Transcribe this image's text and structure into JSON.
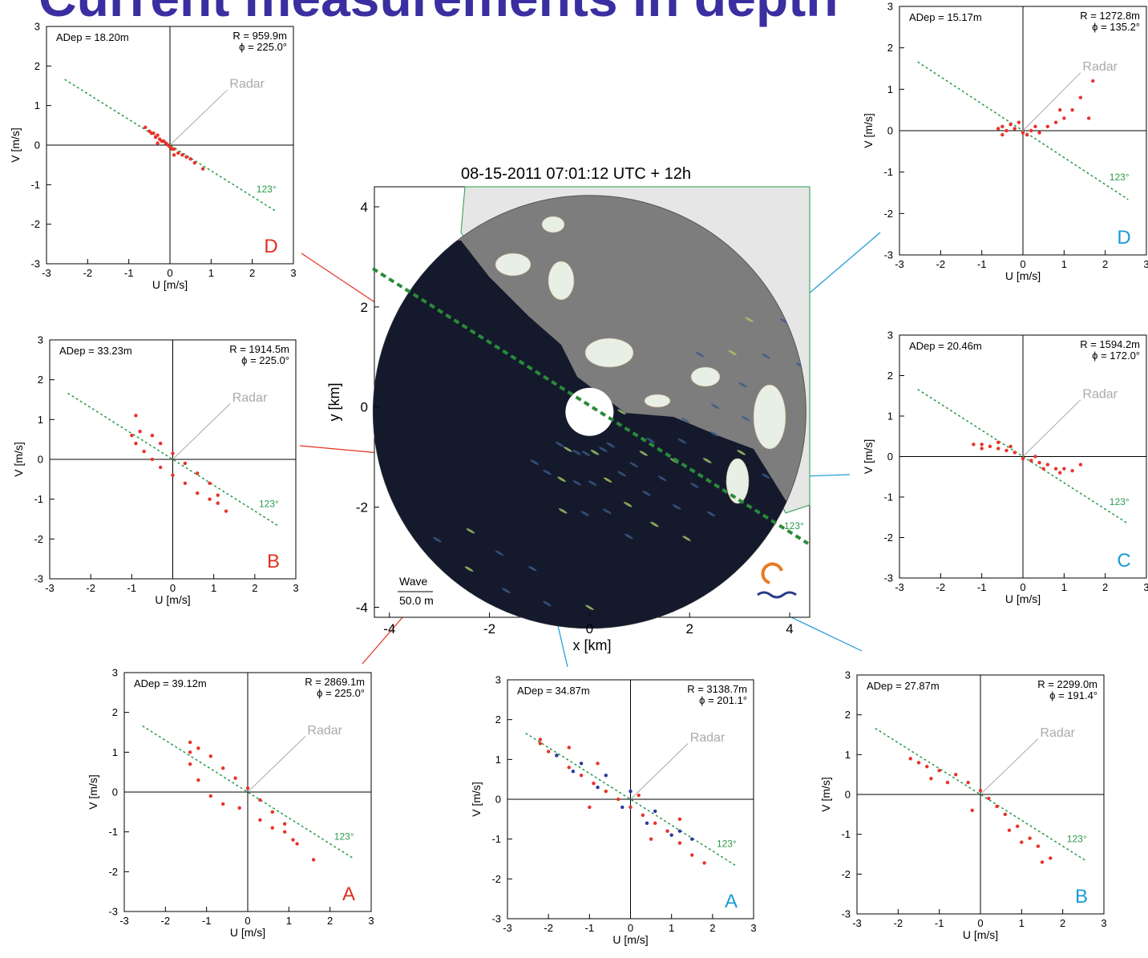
{
  "page_title": "Current measurements in depth",
  "chart_data": [
    {
      "type": "radar_map",
      "title": "08-15-2011 07:01:12 UTC +  12h",
      "xlabel": "x [km]",
      "ylabel": "y [km]",
      "xlim": [
        -4.3,
        4.4
      ],
      "ylim": [
        -4.2,
        4.4
      ],
      "xticks": [
        -4,
        -2,
        0,
        2,
        4
      ],
      "yticks": [
        -4,
        -2,
        0,
        2,
        4
      ],
      "annotations": {
        "wave": "Wave",
        "scale": "50.0 m",
        "angle_label": "123°"
      }
    },
    {
      "type": "scatter",
      "xlabel": "U [m/s]",
      "ylabel": "V [m/s]",
      "xlim": [
        -3,
        3
      ],
      "ylim": [
        -3,
        3
      ],
      "xticks": [
        -3,
        -2,
        -1,
        0,
        1,
        2,
        3
      ],
      "yticks": [
        -3,
        -2,
        -1,
        0,
        1,
        2,
        3
      ],
      "annotations": {
        "adep": "ADep =  18.20m",
        "range": "R =  959.9m",
        "phi": "ϕ =  225.0°",
        "radar_label": "Radar",
        "angle_label": "123°",
        "panel_label": "D"
      },
      "panel_label_color": "#e0301e",
      "series": [
        {
          "color": "#e8322a",
          "x": [
            -0.6,
            -0.5,
            -0.45,
            -0.4,
            -0.35,
            -0.3,
            -0.25,
            -0.2,
            -0.15,
            -0.1,
            -0.05,
            0,
            0.05,
            0.1,
            0.2,
            0.3,
            0.4,
            0.5,
            0.6,
            0.8,
            -0.3,
            0.1
          ],
          "y": [
            0.45,
            0.35,
            0.3,
            0.3,
            0.2,
            0.25,
            0.15,
            0.1,
            0.1,
            0.05,
            0,
            -0.05,
            -0.1,
            -0.1,
            -0.2,
            -0.25,
            -0.3,
            -0.35,
            -0.45,
            -0.6,
            0.05,
            -0.25
          ]
        }
      ]
    },
    {
      "type": "scatter",
      "xlabel": "U [m/s]",
      "ylabel": "V [m/s]",
      "xlim": [
        -3,
        3
      ],
      "ylim": [
        -3,
        3
      ],
      "xticks": [
        -3,
        -2,
        -1,
        0,
        1,
        2,
        3
      ],
      "yticks": [
        -3,
        -2,
        -1,
        0,
        1,
        2,
        3
      ],
      "annotations": {
        "adep": "ADep =  33.23m",
        "range": "R = 1914.5m",
        "phi": "ϕ =  225.0°",
        "radar_label": "Radar",
        "angle_label": "123°",
        "panel_label": "B"
      },
      "panel_label_color": "#e0301e",
      "series": [
        {
          "color": "#e8322a",
          "x": [
            -1,
            -0.8,
            -0.5,
            -0.3,
            0,
            0.3,
            0.6,
            0.9,
            1.1,
            1.3,
            -0.9,
            -0.7,
            -0.5,
            -0.3,
            0,
            0.3,
            0.6,
            0.9,
            1.1,
            -0.9
          ],
          "y": [
            0.6,
            0.7,
            0.6,
            0.4,
            0.15,
            -0.1,
            -0.35,
            -0.6,
            -0.9,
            -1.3,
            0.4,
            0.2,
            0,
            -0.2,
            -0.4,
            -0.6,
            -0.85,
            -1.0,
            -1.1,
            1.1
          ]
        }
      ]
    },
    {
      "type": "scatter",
      "xlabel": "U [m/s]",
      "ylabel": "V [m/s]",
      "xlim": [
        -3,
        3
      ],
      "ylim": [
        -3,
        3
      ],
      "xticks": [
        -3,
        -2,
        -1,
        0,
        1,
        2,
        3
      ],
      "yticks": [
        -3,
        -2,
        -1,
        0,
        1,
        2,
        3
      ],
      "annotations": {
        "adep": "ADep =  39.12m",
        "range": "R = 2869.1m",
        "phi": "ϕ =  225.0°",
        "radar_label": "Radar",
        "angle_label": "123°",
        "panel_label": "A"
      },
      "panel_label_color": "#e0301e",
      "series": [
        {
          "color": "#e8322a",
          "x": [
            -1.4,
            -1.2,
            -0.9,
            -0.6,
            -0.3,
            0,
            0.3,
            0.6,
            0.9,
            1.2,
            1.6,
            -1.4,
            -1.2,
            -0.9,
            -0.6,
            -0.2,
            0.3,
            0.6,
            0.9,
            1.1,
            -1.4
          ],
          "y": [
            1.0,
            1.1,
            0.9,
            0.6,
            0.35,
            0.1,
            -0.2,
            -0.5,
            -0.8,
            -1.3,
            -1.7,
            0.7,
            0.3,
            -0.1,
            -0.3,
            -0.4,
            -0.7,
            -0.9,
            -1.0,
            -1.2,
            1.25
          ]
        }
      ]
    },
    {
      "type": "scatter",
      "xlabel": "U [m/s]",
      "ylabel": "V [m/s]",
      "xlim": [
        -3,
        3
      ],
      "ylim": [
        -3,
        3
      ],
      "xticks": [
        -3,
        -2,
        -1,
        0,
        1,
        2,
        3
      ],
      "yticks": [
        -3,
        -2,
        -1,
        0,
        1,
        2,
        3
      ],
      "annotations": {
        "adep": "ADep =  34.87m",
        "range": "R = 3138.7m",
        "phi": "ϕ =  201.1°",
        "radar_label": "Radar",
        "angle_label": "123°",
        "panel_label": "A"
      },
      "panel_label_color": "#1a9ad6",
      "series": [
        {
          "color": "#e8322a",
          "x": [
            -2.2,
            -2,
            -1.8,
            -1.5,
            -1.2,
            -0.9,
            -0.6,
            -0.3,
            0,
            0.3,
            0.6,
            0.9,
            1.2,
            1.5,
            1.8,
            -1.5,
            -0.8,
            0.2,
            -1.0,
            0.5,
            1.2,
            -2.2
          ],
          "y": [
            1.4,
            1.2,
            1.1,
            0.8,
            0.6,
            0.4,
            0.2,
            0,
            -0.2,
            -0.4,
            -0.6,
            -0.8,
            -1.1,
            -1.4,
            -1.6,
            1.3,
            0.9,
            0.1,
            -0.2,
            -1.0,
            -0.5,
            1.5
          ]
        },
        {
          "color": "#2a3aa0",
          "x": [
            -1.8,
            -1.2,
            -0.6,
            0,
            0.6,
            1.2,
            1.5,
            1.0,
            0.4,
            -0.2,
            -0.8,
            -1.4
          ],
          "y": [
            1.1,
            0.9,
            0.6,
            0.2,
            -0.3,
            -0.8,
            -1.0,
            -0.9,
            -0.6,
            -0.2,
            0.3,
            0.7
          ]
        }
      ]
    },
    {
      "type": "scatter",
      "xlabel": "U [m/s]",
      "ylabel": "V [m/s]",
      "xlim": [
        -3,
        3
      ],
      "ylim": [
        -3,
        3
      ],
      "xticks": [
        -3,
        -2,
        -1,
        0,
        1,
        2,
        3
      ],
      "yticks": [
        -3,
        -2,
        -1,
        0,
        1,
        2,
        3
      ],
      "annotations": {
        "adep": "ADep =  27.87m",
        "range": "R = 2299.0m",
        "phi": "ϕ =  191.4°",
        "radar_label": "Radar",
        "angle_label": "123°",
        "panel_label": "B"
      },
      "panel_label_color": "#1a9ad6",
      "series": [
        {
          "color": "#e8322a",
          "x": [
            -1.7,
            -1.5,
            -1.3,
            -1,
            -0.6,
            -0.3,
            0,
            0.2,
            0.4,
            0.6,
            0.9,
            1.2,
            1.4,
            1.7,
            -1.2,
            -0.8,
            0.7,
            1.0,
            1.5,
            -0.2
          ],
          "y": [
            0.9,
            0.8,
            0.7,
            0.6,
            0.5,
            0.3,
            0.1,
            -0.1,
            -0.3,
            -0.5,
            -0.8,
            -1.1,
            -1.3,
            -1.6,
            0.4,
            0.3,
            -0.9,
            -1.2,
            -1.7,
            -0.4
          ]
        }
      ]
    },
    {
      "type": "scatter",
      "xlabel": "U [m/s]",
      "ylabel": "V [m/s]",
      "xlim": [
        -3,
        3
      ],
      "ylim": [
        -3,
        3
      ],
      "xticks": [
        -3,
        -2,
        -1,
        0,
        1,
        2,
        3
      ],
      "yticks": [
        -3,
        -2,
        -1,
        0,
        1,
        2,
        3
      ],
      "annotations": {
        "adep": "ADep =  15.17m",
        "range": "R = 1272.8m",
        "phi": "ϕ =  135.2°",
        "radar_label": "Radar",
        "angle_label": "123°",
        "panel_label": "D"
      },
      "panel_label_color": "#1a9ad6",
      "series": [
        {
          "color": "#e8322a",
          "x": [
            -0.6,
            -0.5,
            -0.4,
            -0.3,
            -0.2,
            -0.1,
            0,
            0.1,
            0.2,
            0.4,
            0.6,
            0.8,
            1,
            1.2,
            1.4,
            1.7,
            -0.5,
            0.3,
            0.9,
            1.6
          ],
          "y": [
            0.05,
            0.1,
            0,
            0.15,
            0.05,
            0.2,
            -0.05,
            -0.1,
            0,
            -0.05,
            0.1,
            0.2,
            0.3,
            0.5,
            0.8,
            1.2,
            -0.1,
            0.1,
            0.5,
            0.3
          ]
        }
      ]
    },
    {
      "type": "scatter",
      "xlabel": "U [m/s]",
      "ylabel": "V [m/s]",
      "xlim": [
        -3,
        3
      ],
      "ylim": [
        -3,
        3
      ],
      "xticks": [
        -3,
        -2,
        -1,
        0,
        1,
        2,
        3
      ],
      "yticks": [
        -3,
        -2,
        -1,
        0,
        1,
        2,
        3
      ],
      "annotations": {
        "adep": "ADep =  20.46m",
        "range": "R = 1594.2m",
        "phi": "ϕ =  172.0°",
        "radar_label": "Radar",
        "angle_label": "123°",
        "panel_label": "C"
      },
      "panel_label_color": "#1a9ad6",
      "series": [
        {
          "color": "#e8322a",
          "x": [
            -1.2,
            -1,
            -0.8,
            -0.6,
            -0.4,
            -0.2,
            0,
            0.2,
            0.4,
            0.6,
            0.8,
            1,
            1.2,
            1.4,
            -1,
            -0.6,
            0.5,
            0.9,
            0.3,
            -0.3
          ],
          "y": [
            0.3,
            0.3,
            0.25,
            0.2,
            0.15,
            0.1,
            -0.05,
            -0.1,
            -0.15,
            -0.2,
            -0.3,
            -0.3,
            -0.35,
            -0.2,
            0.2,
            0.35,
            -0.3,
            -0.4,
            0,
            0.25
          ]
        }
      ]
    }
  ]
}
